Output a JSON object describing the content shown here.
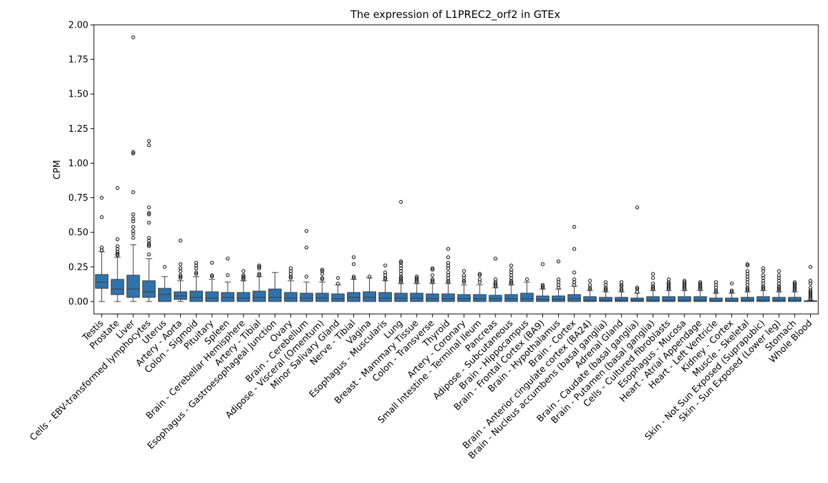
{
  "chart_data": {
    "type": "box",
    "title": "The expression of L1PREC2_orf2 in GTEx",
    "xlabel": "",
    "ylabel": "CPM",
    "ylim": [
      -0.09,
      2.0
    ],
    "yticks": [
      "0.00",
      "0.25",
      "0.50",
      "0.75",
      "1.00",
      "1.25",
      "1.50",
      "1.75",
      "2.00"
    ],
    "ytick_values": [
      0,
      0.25,
      0.5,
      0.75,
      1.0,
      1.25,
      1.5,
      1.75,
      2.0
    ],
    "grid": false,
    "legend": "none",
    "box_color": "#2f73ad",
    "categories": [
      "Testis",
      "Prostate",
      "Liver",
      "Cells - EBV-transformed lymphocytes",
      "Uterus",
      "Artery - Aorta",
      "Colon - Sigmoid",
      "Pituitary",
      "Spleen",
      "Brain - Cerebellar Hemisphere",
      "Artery - Tibial",
      "Esophagus - Gastroesophageal Junction",
      "Ovary",
      "Brain - Cerebellum",
      "Adipose - Visceral (Omentum)",
      "Minor Salivary Gland",
      "Nerve - Tibial",
      "Vagina",
      "Esophagus - Muscularis",
      "Lung",
      "Breast - Mammary Tissue",
      "Colon - Transverse",
      "Thyroid",
      "Artery - Coronary",
      "Small Intestine - Terminal Ileum",
      "Pancreas",
      "Adipose - Subcutaneous",
      "Brain - Hippocampus",
      "Brain - Frontal Cortex (BA9)",
      "Brain - Hypothalamus",
      "Brain - Cortex",
      "Brain - Anterior cingulate cortex (BA24)",
      "Brain - Nucleus accumbens (basal ganglia)",
      "Adrenal Gland",
      "Brain - Caudate (basal ganglia)",
      "Brain - Putamen (basal ganglia)",
      "Cells - Cultured fibroblasts",
      "Esophagus - Mucosa",
      "Heart - Atrial Appendage",
      "Heart - Left Ventricle",
      "Kidney - Cortex",
      "Muscle - Skeletal",
      "Skin - Not Sun Exposed (Suprapubic)",
      "Skin - Sun Exposed (Lower leg)",
      "Stomach",
      "Whole Blood"
    ],
    "boxes": [
      {
        "q1": 0.095,
        "med": 0.14,
        "q3": 0.195,
        "wlo": 0.0,
        "whi": 0.36,
        "outliers": [
          0.75,
          0.61,
          0.39,
          0.37
        ]
      },
      {
        "q1": 0.05,
        "med": 0.09,
        "q3": 0.16,
        "wlo": 0.0,
        "whi": 0.32,
        "outliers": [
          0.82,
          0.45,
          0.4,
          0.38,
          0.36,
          0.345,
          0.335
        ]
      },
      {
        "q1": 0.03,
        "med": 0.09,
        "q3": 0.19,
        "wlo": 0.0,
        "whi": 0.41,
        "outliers": [
          1.91,
          1.08,
          1.07,
          0.79,
          0.63,
          0.6,
          0.58,
          0.54,
          0.51,
          0.49,
          0.46
        ]
      },
      {
        "q1": 0.03,
        "med": 0.07,
        "q3": 0.15,
        "wlo": 0.0,
        "whi": 0.31,
        "outliers": [
          1.16,
          1.13,
          0.68,
          0.64,
          0.63,
          0.57,
          0.46,
          0.44,
          0.42,
          0.41,
          0.4,
          0.34
        ]
      },
      {
        "q1": 0.0,
        "med": 0.05,
        "q3": 0.095,
        "wlo": 0.0,
        "whi": 0.18,
        "outliers": [
          0.25
        ]
      },
      {
        "q1": 0.015,
        "med": 0.04,
        "q3": 0.07,
        "wlo": 0.0,
        "whi": 0.15,
        "outliers": [
          0.44,
          0.27,
          0.24,
          0.22,
          0.19,
          0.18,
          0.17
        ]
      },
      {
        "q1": 0.0,
        "med": 0.03,
        "q3": 0.075,
        "wlo": 0.0,
        "whi": 0.18,
        "outliers": [
          0.28,
          0.26,
          0.24,
          0.21,
          0.2
        ]
      },
      {
        "q1": 0.0,
        "med": 0.025,
        "q3": 0.07,
        "wlo": 0.0,
        "whi": 0.16,
        "outliers": [
          0.28,
          0.19,
          0.18
        ]
      },
      {
        "q1": 0.0,
        "med": 0.03,
        "q3": 0.065,
        "wlo": 0.0,
        "whi": 0.14,
        "outliers": [
          0.31,
          0.19
        ]
      },
      {
        "q1": 0.0,
        "med": 0.025,
        "q3": 0.065,
        "wlo": 0.0,
        "whi": 0.15,
        "outliers": [
          0.22,
          0.19,
          0.18,
          0.17,
          0.16
        ]
      },
      {
        "q1": 0.0,
        "med": 0.03,
        "q3": 0.075,
        "wlo": 0.0,
        "whi": 0.18,
        "outliers": [
          0.26,
          0.25,
          0.24,
          0.2,
          0.19
        ]
      },
      {
        "q1": 0.0,
        "med": 0.03,
        "q3": 0.09,
        "wlo": 0.0,
        "whi": 0.21,
        "outliers": []
      },
      {
        "q1": 0.0,
        "med": 0.025,
        "q3": 0.065,
        "wlo": 0.0,
        "whi": 0.15,
        "outliers": [
          0.24,
          0.22,
          0.2,
          0.18,
          0.17
        ]
      },
      {
        "q1": 0.0,
        "med": 0.025,
        "q3": 0.06,
        "wlo": 0.0,
        "whi": 0.14,
        "outliers": [
          0.51,
          0.39,
          0.18
        ]
      },
      {
        "q1": 0.0,
        "med": 0.025,
        "q3": 0.06,
        "wlo": 0.0,
        "whi": 0.14,
        "outliers": [
          0.23,
          0.22,
          0.2,
          0.17,
          0.16
        ]
      },
      {
        "q1": 0.0,
        "med": 0.02,
        "q3": 0.055,
        "wlo": 0.0,
        "whi": 0.12,
        "outliers": [
          0.17,
          0.13
        ]
      },
      {
        "q1": 0.0,
        "med": 0.03,
        "q3": 0.065,
        "wlo": 0.0,
        "whi": 0.16,
        "outliers": [
          0.32,
          0.27,
          0.18,
          0.17
        ]
      },
      {
        "q1": 0.0,
        "med": 0.03,
        "q3": 0.07,
        "wlo": 0.0,
        "whi": 0.17,
        "outliers": [
          0.18
        ]
      },
      {
        "q1": 0.0,
        "med": 0.025,
        "q3": 0.065,
        "wlo": 0.0,
        "whi": 0.15,
        "outliers": [
          0.26,
          0.21,
          0.19,
          0.17,
          0.16
        ]
      },
      {
        "q1": 0.0,
        "med": 0.025,
        "q3": 0.06,
        "wlo": 0.0,
        "whi": 0.13,
        "outliers": [
          0.72,
          0.29,
          0.28,
          0.26,
          0.24,
          0.22,
          0.2,
          0.18,
          0.17,
          0.16,
          0.15,
          0.14
        ]
      },
      {
        "q1": 0.0,
        "med": 0.025,
        "q3": 0.06,
        "wlo": 0.0,
        "whi": 0.13,
        "outliers": [
          0.18,
          0.17,
          0.16,
          0.15,
          0.14
        ]
      },
      {
        "q1": 0.0,
        "med": 0.02,
        "q3": 0.055,
        "wlo": 0.0,
        "whi": 0.13,
        "outliers": [
          0.24,
          0.23,
          0.19,
          0.16,
          0.15,
          0.14
        ]
      },
      {
        "q1": 0.0,
        "med": 0.02,
        "q3": 0.055,
        "wlo": 0.0,
        "whi": 0.13,
        "outliers": [
          0.38,
          0.32,
          0.28,
          0.26,
          0.24,
          0.21,
          0.19,
          0.17,
          0.15,
          0.14
        ]
      },
      {
        "q1": 0.0,
        "med": 0.02,
        "q3": 0.05,
        "wlo": 0.0,
        "whi": 0.12,
        "outliers": [
          0.22,
          0.19,
          0.17,
          0.15,
          0.14
        ]
      },
      {
        "q1": 0.0,
        "med": 0.02,
        "q3": 0.05,
        "wlo": 0.0,
        "whi": 0.12,
        "outliers": [
          0.2,
          0.19,
          0.16,
          0.14
        ]
      },
      {
        "q1": 0.0,
        "med": 0.02,
        "q3": 0.045,
        "wlo": 0.0,
        "whi": 0.1,
        "outliers": [
          0.31,
          0.16,
          0.14,
          0.13,
          0.12,
          0.11
        ]
      },
      {
        "q1": 0.0,
        "med": 0.02,
        "q3": 0.05,
        "wlo": 0.0,
        "whi": 0.12,
        "outliers": [
          0.26,
          0.23,
          0.21,
          0.19,
          0.17,
          0.15,
          0.14,
          0.13
        ]
      },
      {
        "q1": 0.0,
        "med": 0.02,
        "q3": 0.06,
        "wlo": 0.0,
        "whi": 0.14,
        "outliers": [
          0.16
        ]
      },
      {
        "q1": 0.0,
        "med": 0.015,
        "q3": 0.04,
        "wlo": 0.0,
        "whi": 0.09,
        "outliers": [
          0.27,
          0.12,
          0.11,
          0.1
        ]
      },
      {
        "q1": 0.0,
        "med": 0.015,
        "q3": 0.04,
        "wlo": 0.0,
        "whi": 0.09,
        "outliers": [
          0.29,
          0.16,
          0.14,
          0.12,
          0.1
        ]
      },
      {
        "q1": 0.0,
        "med": 0.02,
        "q3": 0.05,
        "wlo": 0.0,
        "whi": 0.11,
        "outliers": [
          0.54,
          0.38,
          0.21,
          0.16,
          0.14,
          0.12
        ]
      },
      {
        "q1": 0.0,
        "med": 0.01,
        "q3": 0.035,
        "wlo": 0.0,
        "whi": 0.08,
        "outliers": [
          0.15,
          0.12,
          0.1,
          0.09
        ]
      },
      {
        "q1": 0.0,
        "med": 0.01,
        "q3": 0.03,
        "wlo": 0.0,
        "whi": 0.07,
        "outliers": [
          0.14,
          0.12,
          0.1,
          0.09,
          0.08
        ]
      },
      {
        "q1": 0.0,
        "med": 0.01,
        "q3": 0.03,
        "wlo": 0.0,
        "whi": 0.07,
        "outliers": [
          0.14,
          0.12,
          0.11,
          0.09,
          0.08
        ]
      },
      {
        "q1": 0.0,
        "med": 0.01,
        "q3": 0.025,
        "wlo": 0.0,
        "whi": 0.06,
        "outliers": [
          0.68,
          0.1,
          0.09,
          0.07
        ]
      },
      {
        "q1": 0.0,
        "med": 0.01,
        "q3": 0.035,
        "wlo": 0.0,
        "whi": 0.08,
        "outliers": [
          0.2,
          0.17,
          0.13,
          0.11,
          0.1,
          0.09
        ]
      },
      {
        "q1": 0.0,
        "med": 0.01,
        "q3": 0.035,
        "wlo": 0.0,
        "whi": 0.08,
        "outliers": [
          0.16,
          0.14,
          0.13,
          0.12,
          0.11,
          0.1,
          0.09
        ]
      },
      {
        "q1": 0.0,
        "med": 0.01,
        "q3": 0.035,
        "wlo": 0.0,
        "whi": 0.08,
        "outliers": [
          0.15,
          0.14,
          0.13,
          0.12,
          0.11,
          0.1,
          0.09
        ]
      },
      {
        "q1": 0.0,
        "med": 0.01,
        "q3": 0.035,
        "wlo": 0.0,
        "whi": 0.08,
        "outliers": [
          0.14,
          0.13,
          0.12,
          0.11,
          0.1,
          0.09
        ]
      },
      {
        "q1": 0.0,
        "med": 0.005,
        "q3": 0.025,
        "wlo": 0.0,
        "whi": 0.06,
        "outliers": [
          0.14,
          0.12,
          0.1,
          0.08,
          0.07
        ]
      },
      {
        "q1": 0.0,
        "med": 0.005,
        "q3": 0.025,
        "wlo": 0.0,
        "whi": 0.06,
        "outliers": [
          0.13,
          0.08,
          0.07
        ]
      },
      {
        "q1": 0.0,
        "med": 0.01,
        "q3": 0.03,
        "wlo": 0.0,
        "whi": 0.07,
        "outliers": [
          0.27,
          0.26,
          0.22,
          0.2,
          0.18,
          0.16,
          0.14,
          0.12,
          0.1,
          0.09,
          0.08
        ]
      },
      {
        "q1": 0.0,
        "med": 0.01,
        "q3": 0.035,
        "wlo": 0.0,
        "whi": 0.08,
        "outliers": [
          0.24,
          0.22,
          0.19,
          0.17,
          0.15,
          0.13,
          0.11,
          0.1,
          0.09
        ]
      },
      {
        "q1": 0.0,
        "med": 0.01,
        "q3": 0.03,
        "wlo": 0.0,
        "whi": 0.07,
        "outliers": [
          0.22,
          0.19,
          0.17,
          0.15,
          0.13,
          0.11,
          0.1,
          0.09,
          0.08
        ]
      },
      {
        "q1": 0.0,
        "med": 0.01,
        "q3": 0.03,
        "wlo": 0.0,
        "whi": 0.07,
        "outliers": [
          0.14,
          0.13,
          0.12,
          0.11,
          0.1,
          0.09,
          0.08
        ]
      },
      {
        "q1": 0.0,
        "med": 0.0,
        "q3": 0.005,
        "wlo": 0.0,
        "whi": 0.01,
        "outliers": [
          0.25,
          0.15,
          0.13,
          0.1,
          0.08,
          0.07,
          0.06,
          0.05,
          0.04,
          0.03,
          0.02
        ]
      }
    ]
  }
}
